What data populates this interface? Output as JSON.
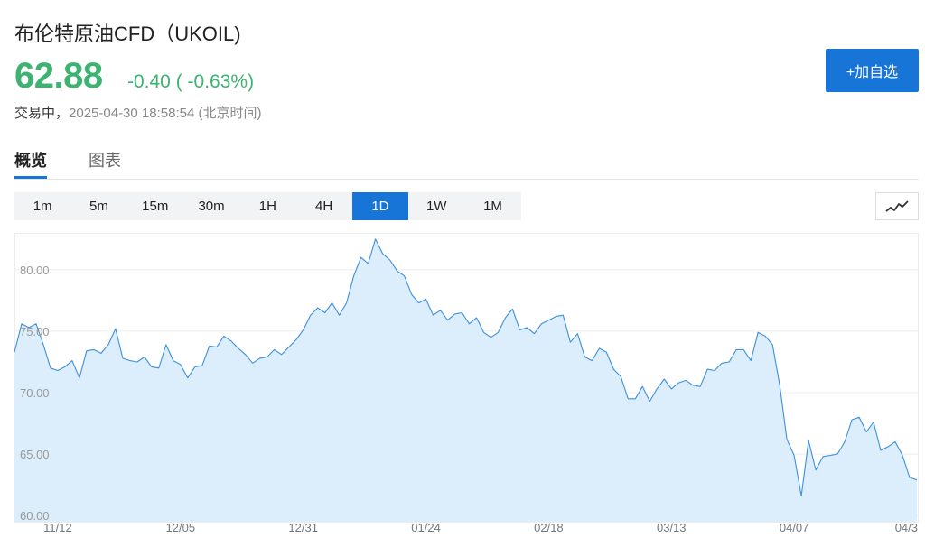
{
  "header": {
    "title": "布伦特原油CFD（UKOIL)",
    "price": "62.88",
    "change": "-0.40 ( -0.63%)",
    "status": "交易中，",
    "timestamp": "2025-04-30 18:58:54",
    "timezone": "(北京时间)",
    "add_watchlist_label": "+加自选"
  },
  "tabs": [
    {
      "label": "概览",
      "active": true
    },
    {
      "label": "图表",
      "active": false
    }
  ],
  "periods": [
    {
      "label": "1m",
      "active": false
    },
    {
      "label": "5m",
      "active": false
    },
    {
      "label": "15m",
      "active": false
    },
    {
      "label": "30m",
      "active": false
    },
    {
      "label": "1H",
      "active": false
    },
    {
      "label": "4H",
      "active": false
    },
    {
      "label": "1D",
      "active": true
    },
    {
      "label": "1W",
      "active": false
    },
    {
      "label": "1M",
      "active": false
    }
  ],
  "chart_type_icon": "line-chart-icon",
  "colors": {
    "accent": "#1875d8",
    "up_down_text": "#3cb371",
    "line": "#3d8fdc",
    "area": "#dceefc"
  },
  "chart_data": {
    "type": "area",
    "xlabel": "",
    "ylabel": "",
    "ylim": [
      59.5,
      83.0
    ],
    "yticks": [
      "80.00",
      "75.00",
      "70.00",
      "65.00",
      "60.00"
    ],
    "ytick_values": [
      80,
      75,
      70,
      65,
      60
    ],
    "xticks": [
      "11/12",
      "12/05",
      "12/31",
      "01/24",
      "02/18",
      "03/13",
      "04/07",
      "04/3"
    ],
    "xtick_index": [
      6,
      23,
      40,
      57,
      74,
      91,
      108,
      125
    ],
    "grid": true,
    "series": [
      {
        "values": [
          73.3,
          75.6,
          75.3,
          75.6,
          73.9,
          72.0,
          71.8,
          72.1,
          72.6,
          71.2,
          73.4,
          73.5,
          73.2,
          73.9,
          75.2,
          72.8,
          72.6,
          72.5,
          72.9,
          72.1,
          72.0,
          73.9,
          72.6,
          72.3,
          71.2,
          72.1,
          72.2,
          73.8,
          73.7,
          74.6,
          74.2,
          73.6,
          73.1,
          72.4,
          72.8,
          72.9,
          73.5,
          73.1,
          73.7,
          74.3,
          75.1,
          76.3,
          76.9,
          76.5,
          77.3,
          76.3,
          77.3,
          79.5,
          81.0,
          80.5,
          82.5,
          81.3,
          80.8,
          79.9,
          79.5,
          78.0,
          77.3,
          77.6,
          76.3,
          76.7,
          75.9,
          76.4,
          76.5,
          75.6,
          76.1,
          74.9,
          74.5,
          74.9,
          76.1,
          76.8,
          75.1,
          75.3,
          74.8,
          75.6,
          75.9,
          76.2,
          76.3,
          74.1,
          74.8,
          72.9,
          72.6,
          73.6,
          73.3,
          71.9,
          71.3,
          69.5,
          69.5,
          70.5,
          69.3,
          70.3,
          71.1,
          70.3,
          70.8,
          71.0,
          70.6,
          70.5,
          71.9,
          71.8,
          72.4,
          72.5,
          73.5,
          73.5,
          72.6,
          74.9,
          74.6,
          73.9,
          70.6,
          66.2,
          64.9,
          61.6,
          66.1,
          63.7,
          64.8,
          64.9,
          65.0,
          66.0,
          67.8,
          68.0,
          66.8,
          67.6,
          65.3,
          65.6,
          66.0,
          64.9,
          63.1,
          62.9
        ]
      }
    ]
  }
}
